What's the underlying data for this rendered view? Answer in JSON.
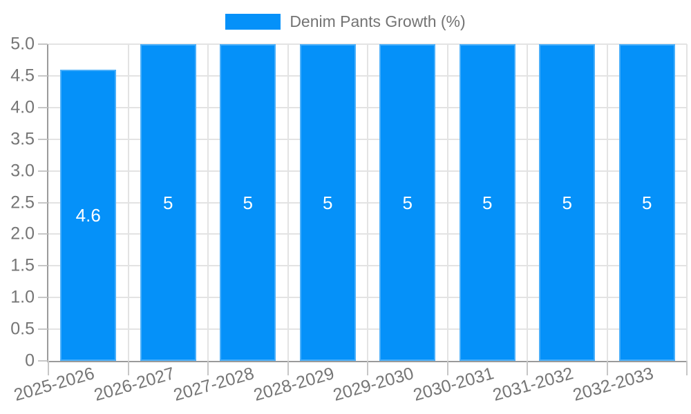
{
  "legend": {
    "label": "Denim Pants Growth (%)"
  },
  "colors": {
    "bar": "#0591f9",
    "bar_value_label": "#ffffff",
    "axis_text": "#757575",
    "legend_text": "#737373",
    "gridline": "#e3e3e3",
    "axis_line": "#9a9a9a",
    "tick": "#c6c6c6",
    "background": "#ffffff"
  },
  "chart_data": {
    "type": "bar",
    "title": "",
    "xlabel": "",
    "ylabel": "",
    "legend_position": "top",
    "grid": true,
    "categories": [
      "2025-2026",
      "2026-2027",
      "2027-2028",
      "2028-2029",
      "2029-2030",
      "2030-2031",
      "2031-2032",
      "2032-2033"
    ],
    "series": [
      {
        "name": "Denim Pants Growth (%)",
        "values": [
          4.6,
          5,
          5,
          5,
          5,
          5,
          5,
          5
        ]
      }
    ],
    "bar_value_labels": [
      "4.6",
      "5",
      "5",
      "5",
      "5",
      "5",
      "5",
      "5"
    ],
    "ylim": [
      0,
      5
    ],
    "ytick_values": [
      0,
      0.5,
      1,
      1.5,
      2,
      2.5,
      3,
      3.5,
      4,
      4.5,
      5
    ],
    "ytick_labels": [
      "0",
      "0.5",
      "1.0",
      "1.5",
      "2.0",
      "2.5",
      "3.0",
      "3.5",
      "4.0",
      "4.5",
      "5.0"
    ],
    "x_label_rotation_deg": -16
  }
}
